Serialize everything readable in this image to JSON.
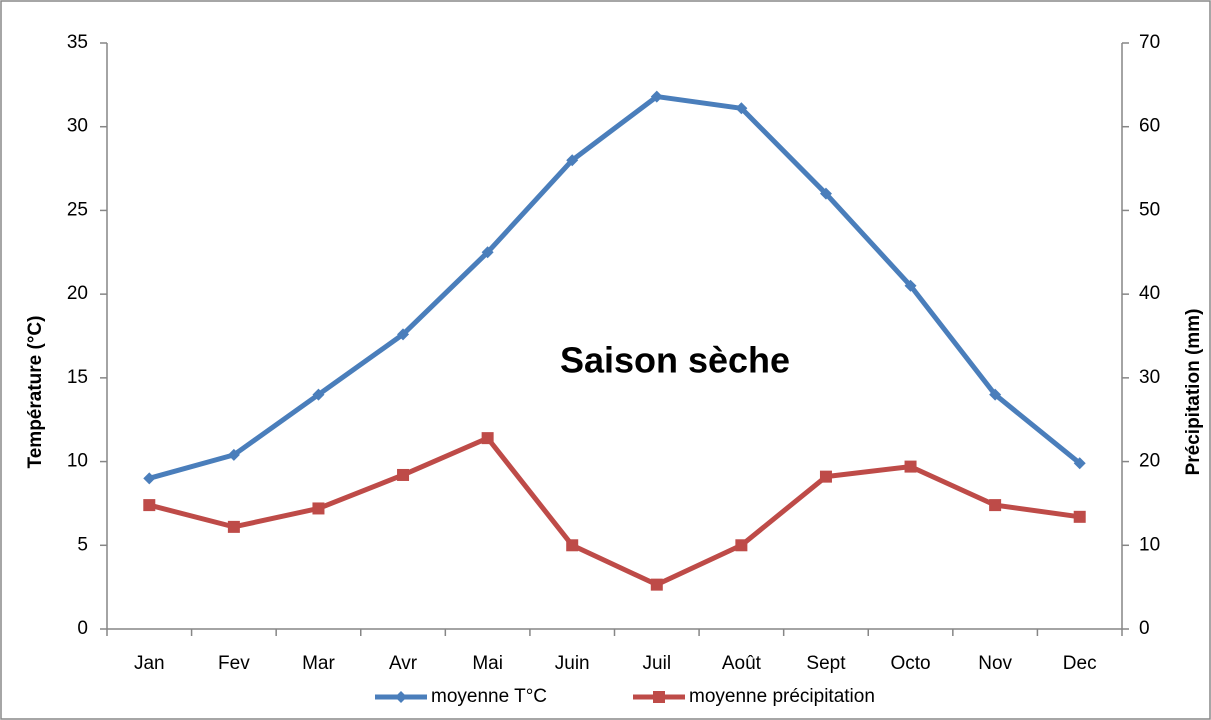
{
  "chart_data": {
    "type": "line",
    "categories": [
      "Jan",
      "Fev",
      "Mar",
      "Avr",
      "Mai",
      "Juin",
      "Juil",
      "Août",
      "Sept",
      "Octo",
      "Nov",
      "Dec"
    ],
    "series": [
      {
        "name": "moyenne T°C",
        "color": "#4a7ebb",
        "marker": "diamond",
        "values": [
          9,
          10.4,
          14,
          17.6,
          22.5,
          28,
          31.8,
          31.1,
          26,
          20.5,
          14,
          9.9
        ]
      },
      {
        "name": "moyenne précipitation",
        "color": "#be4b48",
        "marker": "square",
        "axis": "y2",
        "values": [
          14.8,
          12.2,
          14.4,
          18.4,
          22.8,
          10,
          5.3,
          10,
          18.2,
          19.4,
          14.8,
          13.4
        ]
      }
    ],
    "ylabel": "Température (°C)",
    "y2label": "Précipitation (mm)",
    "ylim": [
      0,
      35
    ],
    "yticks": [
      0,
      5,
      10,
      15,
      20,
      25,
      30,
      35
    ],
    "y2lim": [
      0,
      70
    ],
    "y2ticks": [
      0,
      10,
      20,
      30,
      40,
      50,
      60,
      70
    ],
    "annotation": "Saison sèche",
    "legend": "bottom"
  }
}
